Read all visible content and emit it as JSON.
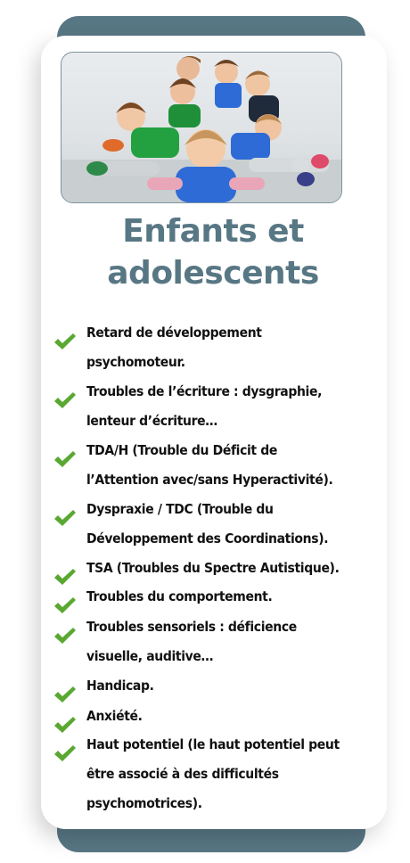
{
  "colors": {
    "accent": "#587784",
    "check": "#5aa832",
    "text": "#111111"
  },
  "photo": {
    "alt": "children-group-photo"
  },
  "title": {
    "line1": "Enfants et",
    "line2": "adolescents"
  },
  "items": [
    {
      "lines": [
        "Retard de développement",
        "psychomoteur."
      ]
    },
    {
      "lines": [
        "Troubles de l’écriture : dysgraphie,",
        "lenteur d’écriture…"
      ]
    },
    {
      "lines": [
        "TDA/H (Trouble du Déficit de",
        "l’Attention avec/sans Hyperactivité)."
      ]
    },
    {
      "lines": [
        "Dyspraxie / TDC (Trouble du",
        "Développement des Coordinations)."
      ]
    },
    {
      "lines": [
        "TSA (Troubles du Spectre Autistique)."
      ]
    },
    {
      "lines": [
        "Troubles du comportement."
      ]
    },
    {
      "lines": [
        "Troubles sensoriels : déficience",
        "visuelle, auditive…"
      ]
    },
    {
      "lines": [
        "Handicap."
      ]
    },
    {
      "lines": [
        "Anxiété."
      ]
    },
    {
      "lines": [
        "Haut potentiel (le haut potentiel peut",
        "être associé à des difficultés",
        "psychomotrices)."
      ]
    }
  ]
}
